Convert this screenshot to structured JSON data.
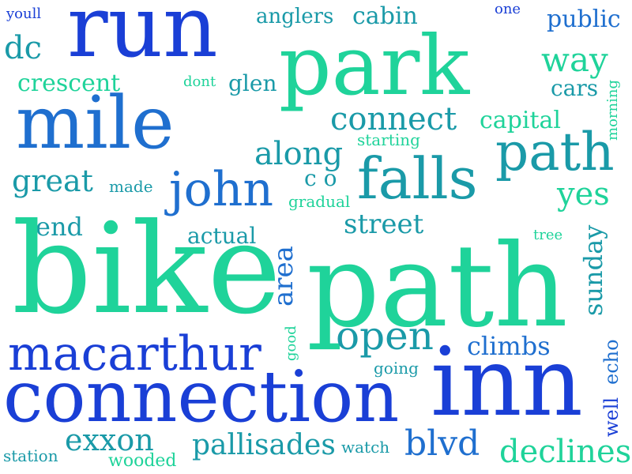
{
  "colors": {
    "background": "#ffffff",
    "blue": "#1a3fd6",
    "mid_blue": "#1f6fcf",
    "teal": "#1a9aa8",
    "green": "#1fd39a"
  },
  "words": [
    {
      "text": "youll",
      "color": "#1a3fd6",
      "size": "small"
    },
    {
      "text": "run",
      "color": "#1a3fd6",
      "size": "xlarge"
    },
    {
      "text": "anglers",
      "color": "#1a9aa8",
      "size": "small"
    },
    {
      "text": "cabin",
      "color": "#1a9aa8",
      "size": "small"
    },
    {
      "text": "one",
      "color": "#1a3fd6",
      "size": "tiny"
    },
    {
      "text": "public",
      "color": "#1f6fcf",
      "size": "small"
    },
    {
      "text": "dc",
      "color": "#1a9aa8",
      "size": "medium"
    },
    {
      "text": "park",
      "color": "#1fd39a",
      "size": "xlarge"
    },
    {
      "text": "way",
      "color": "#1fd39a",
      "size": "medium"
    },
    {
      "text": "crescent",
      "color": "#1fd39a",
      "size": "small"
    },
    {
      "text": "dont",
      "color": "#1fd39a",
      "size": "tiny"
    },
    {
      "text": "glen",
      "color": "#1a9aa8",
      "size": "small"
    },
    {
      "text": "cars",
      "color": "#1a9aa8",
      "size": "small"
    },
    {
      "text": "morning",
      "color": "#1fd39a",
      "size": "tiny"
    },
    {
      "text": "mile",
      "color": "#1f6fcf",
      "size": "xlarge"
    },
    {
      "text": "connect",
      "color": "#1a9aa8",
      "size": "medium"
    },
    {
      "text": "capital",
      "color": "#1fd39a",
      "size": "small"
    },
    {
      "text": "starting",
      "color": "#1fd39a",
      "size": "tiny"
    },
    {
      "text": "along",
      "color": "#1a9aa8",
      "size": "medium"
    },
    {
      "text": "path",
      "color": "#1a9aa8",
      "size": "large"
    },
    {
      "text": "falls",
      "color": "#1a9aa8",
      "size": "large"
    },
    {
      "text": "great",
      "color": "#1a9aa8",
      "size": "medium"
    },
    {
      "text": "made",
      "color": "#1a9aa8",
      "size": "tiny"
    },
    {
      "text": "john",
      "color": "#1f6fcf",
      "size": "large"
    },
    {
      "text": "c o",
      "color": "#1a9aa8",
      "size": "small"
    },
    {
      "text": "gradual",
      "color": "#1fd39a",
      "size": "tiny"
    },
    {
      "text": "yes",
      "color": "#1fd39a",
      "size": "medium"
    },
    {
      "text": "end",
      "color": "#1a9aa8",
      "size": "small"
    },
    {
      "text": "street",
      "color": "#1a9aa8",
      "size": "small"
    },
    {
      "text": "actual",
      "color": "#1a9aa8",
      "size": "small"
    },
    {
      "text": "tree",
      "color": "#1fd39a",
      "size": "tiny"
    },
    {
      "text": "area",
      "color": "#1f6fcf",
      "size": "small"
    },
    {
      "text": "sunday",
      "color": "#1a9aa8",
      "size": "small"
    },
    {
      "text": "bike",
      "color": "#1fd39a",
      "size": "xlarge"
    },
    {
      "text": "path",
      "color": "#1fd39a",
      "size": "xlarge"
    },
    {
      "text": "good",
      "color": "#1fd39a",
      "size": "tiny"
    },
    {
      "text": "echo",
      "color": "#1f6fcf",
      "size": "small"
    },
    {
      "text": "open",
      "color": "#1a9aa8",
      "size": "medium"
    },
    {
      "text": "climbs",
      "color": "#1f6fcf",
      "size": "small"
    },
    {
      "text": "macarthur",
      "color": "#1a3fd6",
      "size": "large"
    },
    {
      "text": "going",
      "color": "#1a9aa8",
      "size": "tiny"
    },
    {
      "text": "well",
      "color": "#1a3fd6",
      "size": "small"
    },
    {
      "text": "connection",
      "color": "#1a3fd6",
      "size": "xlarge"
    },
    {
      "text": "inn",
      "color": "#1a3fd6",
      "size": "xlarge"
    },
    {
      "text": "exxon",
      "color": "#1a9aa8",
      "size": "medium"
    },
    {
      "text": "pallisades",
      "color": "#1a9aa8",
      "size": "medium"
    },
    {
      "text": "watch",
      "color": "#1a9aa8",
      "size": "tiny"
    },
    {
      "text": "blvd",
      "color": "#1f6fcf",
      "size": "medium"
    },
    {
      "text": "declines",
      "color": "#1fd39a",
      "size": "medium"
    },
    {
      "text": "station",
      "color": "#1a9aa8",
      "size": "tiny"
    },
    {
      "text": "wooded",
      "color": "#1fd39a",
      "size": "tiny"
    }
  ]
}
